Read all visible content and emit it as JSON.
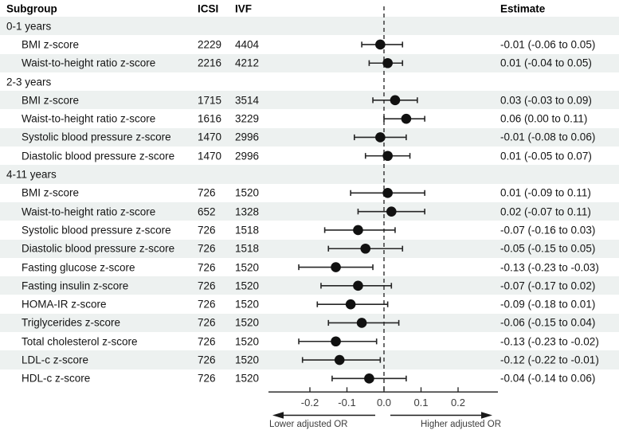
{
  "figure": {
    "header": {
      "subgroup": "Subgroup",
      "icsi": "ICSI",
      "ivf": "IVF",
      "estimate": "Estimate"
    }
  },
  "colors": {
    "stripe": "#edf1f0",
    "marker": "#111111",
    "ci_line": "#262626",
    "axis_line": "#2e2e2e",
    "zero_line": "#3c3c3c",
    "axis_text": "#3d3d3d",
    "arrow": "#1a1a1a"
  },
  "chart_data": {
    "type": "forest",
    "x_axis": {
      "ticks": [
        -0.2,
        -0.1,
        0.0,
        0.1,
        0.2
      ],
      "tick_labels": [
        "-0.2",
        "-0.1",
        "0.0",
        "0.1",
        "0.2"
      ],
      "range": [
        -0.32,
        0.31
      ],
      "zero_reference": 0.0
    },
    "direction_labels": {
      "left": "Lower adjusted OR",
      "right": "Higher adjusted OR"
    },
    "rows": [
      {
        "kind": "section",
        "label": "0-1 years"
      },
      {
        "kind": "item",
        "label": "BMI z-score",
        "icsi": "2229",
        "ivf": "4404",
        "est": -0.01,
        "lo": -0.06,
        "hi": 0.05,
        "estimate_text": "-0.01 (-0.06 to 0.05)"
      },
      {
        "kind": "item",
        "label": "Waist-to-height ratio z-score",
        "icsi": "2216",
        "ivf": "4212",
        "est": 0.01,
        "lo": -0.04,
        "hi": 0.05,
        "estimate_text": "0.01 (-0.04 to 0.05)"
      },
      {
        "kind": "section",
        "label": "2-3 years"
      },
      {
        "kind": "item",
        "label": "BMI z-score",
        "icsi": "1715",
        "ivf": "3514",
        "est": 0.03,
        "lo": -0.03,
        "hi": 0.09,
        "estimate_text": "0.03 (-0.03 to 0.09)"
      },
      {
        "kind": "item",
        "label": "Waist-to-height ratio z-score",
        "icsi": "1616",
        "ivf": "3229",
        "est": 0.06,
        "lo": 0.0,
        "hi": 0.11,
        "estimate_text": "0.06 (0.00 to 0.11)"
      },
      {
        "kind": "item",
        "label": "Systolic blood pressure z-score",
        "icsi": "1470",
        "ivf": "2996",
        "est": -0.01,
        "lo": -0.08,
        "hi": 0.06,
        "estimate_text": "-0.01 (-0.08 to 0.06)"
      },
      {
        "kind": "item",
        "label": "Diastolic blood pressure z-score",
        "icsi": "1470",
        "ivf": "2996",
        "est": 0.01,
        "lo": -0.05,
        "hi": 0.07,
        "estimate_text": "0.01 (-0.05 to 0.07)"
      },
      {
        "kind": "section",
        "label": "4-11 years"
      },
      {
        "kind": "item",
        "label": "BMI z-score",
        "icsi": "726",
        "ivf": "1520",
        "est": 0.01,
        "lo": -0.09,
        "hi": 0.11,
        "estimate_text": "0.01 (-0.09 to 0.11)"
      },
      {
        "kind": "item",
        "label": "Waist-to-height ratio z-score",
        "icsi": "652",
        "ivf": "1328",
        "est": 0.02,
        "lo": -0.07,
        "hi": 0.11,
        "estimate_text": "0.02 (-0.07 to 0.11)"
      },
      {
        "kind": "item",
        "label": "Systolic blood pressure z-score",
        "icsi": "726",
        "ivf": "1518",
        "est": -0.07,
        "lo": -0.16,
        "hi": 0.03,
        "estimate_text": "-0.07 (-0.16 to 0.03)"
      },
      {
        "kind": "item",
        "label": "Diastolic blood pressure z-score",
        "icsi": "726",
        "ivf": "1518",
        "est": -0.05,
        "lo": -0.15,
        "hi": 0.05,
        "estimate_text": "-0.05 (-0.15 to 0.05)"
      },
      {
        "kind": "item",
        "label": "Fasting glucose z-score",
        "icsi": "726",
        "ivf": "1520",
        "est": -0.13,
        "lo": -0.23,
        "hi": -0.03,
        "estimate_text": "-0.13 (-0.23 to -0.03)"
      },
      {
        "kind": "item",
        "label": "Fasting insulin z-score",
        "icsi": "726",
        "ivf": "1520",
        "est": -0.07,
        "lo": -0.17,
        "hi": 0.02,
        "estimate_text": "-0.07 (-0.17 to 0.02)"
      },
      {
        "kind": "item",
        "label": "HOMA-IR z-score",
        "icsi": "726",
        "ivf": "1520",
        "est": -0.09,
        "lo": -0.18,
        "hi": 0.01,
        "estimate_text": "-0.09 (-0.18 to 0.01)"
      },
      {
        "kind": "item",
        "label": "Triglycerides z-score",
        "icsi": "726",
        "ivf": "1520",
        "est": -0.06,
        "lo": -0.15,
        "hi": 0.04,
        "estimate_text": "-0.06 (-0.15 to 0.04)"
      },
      {
        "kind": "item",
        "label": "Total cholesterol z-score",
        "icsi": "726",
        "ivf": "1520",
        "est": -0.13,
        "lo": -0.23,
        "hi": -0.02,
        "estimate_text": "-0.13 (-0.23 to -0.02)"
      },
      {
        "kind": "item",
        "label": "LDL-c z-score",
        "icsi": "726",
        "ivf": "1520",
        "est": -0.12,
        "lo": -0.22,
        "hi": -0.01,
        "estimate_text": "-0.12 (-0.22 to -0.01)"
      },
      {
        "kind": "item",
        "label": "HDL-c z-score",
        "icsi": "726",
        "ivf": "1520",
        "est": -0.04,
        "lo": -0.14,
        "hi": 0.06,
        "estimate_text": "-0.04 (-0.14 to 0.06)"
      }
    ]
  }
}
